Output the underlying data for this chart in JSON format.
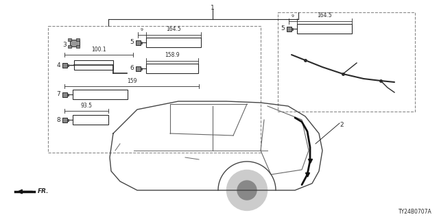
{
  "part_number": "TY24B0707A",
  "bg_color": "#ffffff",
  "lc": "#2a2a2a",
  "fig_width": 6.4,
  "fig_height": 3.2,
  "dpi": 100
}
